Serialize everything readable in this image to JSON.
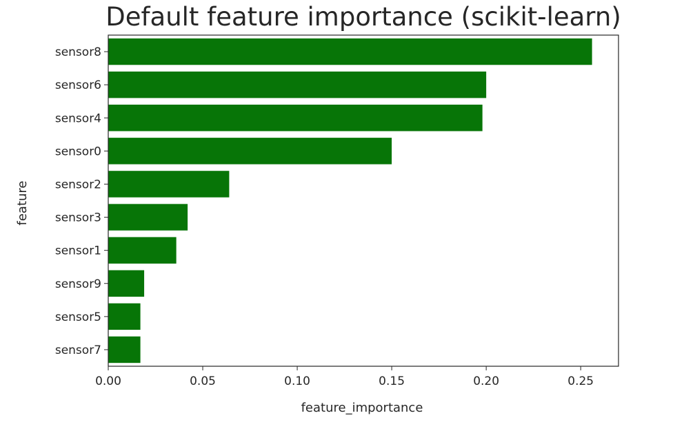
{
  "chart_data": {
    "type": "bar",
    "orientation": "horizontal",
    "title": "Default feature importance (scikit-learn)",
    "xlabel": "feature_importance",
    "ylabel": "feature",
    "categories": [
      "sensor8",
      "sensor6",
      "sensor4",
      "sensor0",
      "sensor2",
      "sensor3",
      "sensor1",
      "sensor9",
      "sensor5",
      "sensor7"
    ],
    "values": [
      0.256,
      0.2,
      0.198,
      0.15,
      0.064,
      0.042,
      0.036,
      0.019,
      0.017,
      0.017
    ],
    "xlim": [
      0,
      0.27
    ],
    "xticks": [
      0.0,
      0.05,
      0.1,
      0.15,
      0.2,
      0.25
    ],
    "xtick_labels": [
      "0.00",
      "0.05",
      "0.10",
      "0.15",
      "0.20",
      "0.25"
    ],
    "grid": false,
    "legend": "none",
    "bar_color": "#077507",
    "axis_color": "#262626",
    "text_color": "#262626"
  }
}
